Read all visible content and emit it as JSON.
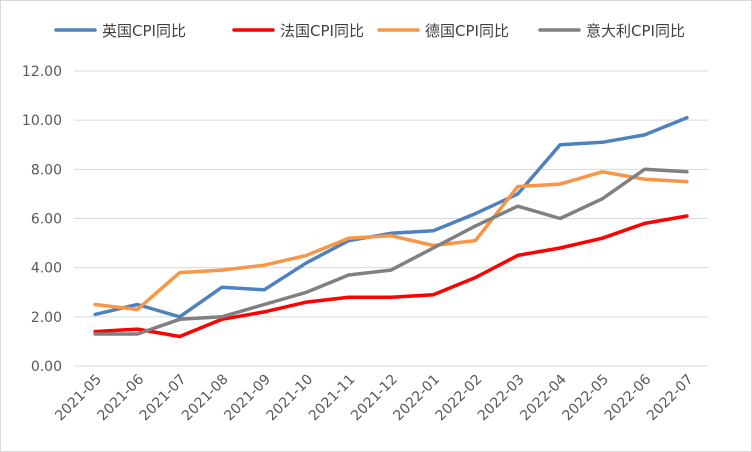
{
  "chart_data": {
    "type": "line",
    "title": "",
    "xlabel": "",
    "ylabel": "",
    "categories": [
      "2021-05",
      "2021-06",
      "2021-07",
      "2021-08",
      "2021-09",
      "2021-10",
      "2021-11",
      "2021-12",
      "2022-01",
      "2022-02",
      "2022-03",
      "2022-04",
      "2022-05",
      "2022-06",
      "2022-07"
    ],
    "ylim": [
      0,
      12
    ],
    "yticks": [
      "0.00",
      "2.00",
      "4.00",
      "6.00",
      "8.00",
      "10.00",
      "12.00"
    ],
    "grid": true,
    "legend_position": "top",
    "series": [
      {
        "name": "英国CPI同比",
        "color": "#4F81BD",
        "values": [
          2.1,
          2.5,
          2.0,
          3.2,
          3.1,
          4.2,
          5.1,
          5.4,
          5.5,
          6.2,
          7.0,
          9.0,
          9.1,
          9.4,
          10.1
        ]
      },
      {
        "name": "法国CPI同比",
        "color": "#FF0000",
        "values": [
          1.4,
          1.5,
          1.2,
          1.9,
          2.2,
          2.6,
          2.8,
          2.8,
          2.9,
          3.6,
          4.5,
          4.8,
          5.2,
          5.8,
          6.1
        ]
      },
      {
        "name": "德国CPI同比",
        "color": "#F79646",
        "values": [
          2.5,
          2.3,
          3.8,
          3.9,
          4.1,
          4.5,
          5.2,
          5.3,
          4.9,
          5.1,
          7.3,
          7.4,
          7.9,
          7.6,
          7.5
        ]
      },
      {
        "name": "意大利CPI同比",
        "color": "#808080",
        "values": [
          1.3,
          1.3,
          1.9,
          2.0,
          2.5,
          3.0,
          3.7,
          3.9,
          4.8,
          5.7,
          6.5,
          6.0,
          6.8,
          8.0,
          7.9
        ]
      }
    ]
  }
}
